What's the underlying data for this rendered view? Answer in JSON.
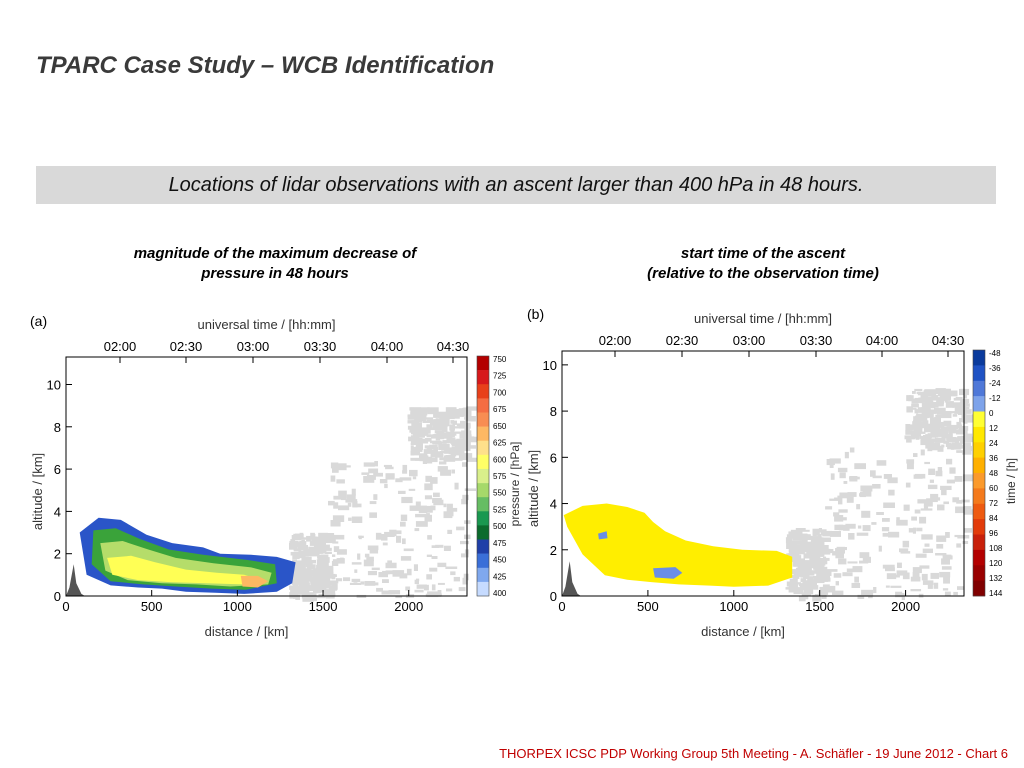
{
  "slide": {
    "title": "TPARC Case Study – WCB Identification",
    "banner": "Locations of lidar observations with an ascent larger than 400 hPa in 48 hours.",
    "footer": "THORPEX ICSC PDP Working Group 5th Meeting - A. Schäfler - 19 June 2012 - Chart 6"
  },
  "panels": [
    {
      "letter": "(a)",
      "heading_lines": [
        "magnitude of the maximum decrease of",
        "pressure in 48 hours"
      ]
    },
    {
      "letter": "(b)",
      "heading_lines": [
        "start time of the ascent",
        "(relative to the observation time)"
      ]
    }
  ],
  "chart_data": [
    {
      "type": "heatmap",
      "title": "",
      "xlabel": "distance / [km]",
      "x_ticks": [
        0,
        500,
        1000,
        1500,
        2000
      ],
      "xlim": [
        0,
        2340
      ],
      "top_xlabel": "universal time / [hh:mm]",
      "top_ticks": [
        "02:00",
        "02:30",
        "03:00",
        "03:30",
        "04:00",
        "04:30"
      ],
      "ylabel": "altitude / [km]",
      "y_ticks": [
        0,
        2,
        4,
        6,
        8,
        10
      ],
      "ylim": [
        0,
        11.3
      ],
      "colorbar": {
        "label": "pressure / [hPa]",
        "ticks": [
          "750",
          "725",
          "700",
          "675",
          "650",
          "625",
          "600",
          "575",
          "550",
          "525",
          "500",
          "475",
          "450",
          "425",
          "400"
        ],
        "colors": [
          "#b30000",
          "#d7191c",
          "#e8401a",
          "#f46d43",
          "#f88d52",
          "#fdb863",
          "#fee08b",
          "#ffff66",
          "#d9ef8b",
          "#a6d96a",
          "#66bd63",
          "#1a9850",
          "#0b6b2d",
          "#1f3fa8",
          "#3a6fd8",
          "#7fa8ee",
          "#c6dbff"
        ]
      },
      "fields": [
        {
          "name": "envelope",
          "color": "#2a55c8",
          "points": [
            [
              80,
              3.0
            ],
            [
              190,
              3.7
            ],
            [
              320,
              3.6
            ],
            [
              470,
              2.9
            ],
            [
              620,
              2.5
            ],
            [
              800,
              2.3
            ],
            [
              900,
              2.0
            ],
            [
              1080,
              1.95
            ],
            [
              1230,
              1.85
            ],
            [
              1340,
              1.6
            ],
            [
              1320,
              0.6
            ],
            [
              1230,
              0.2
            ],
            [
              1040,
              0.1
            ],
            [
              870,
              0.15
            ],
            [
              700,
              0.2
            ],
            [
              560,
              0.35
            ],
            [
              420,
              0.4
            ],
            [
              260,
              0.5
            ],
            [
              120,
              1.0
            ]
          ]
        },
        {
          "name": "green-core",
          "color": "#3aa33a",
          "points": [
            [
              160,
              3.1
            ],
            [
              290,
              3.2
            ],
            [
              430,
              2.7
            ],
            [
              600,
              2.2
            ],
            [
              800,
              1.95
            ],
            [
              1060,
              1.7
            ],
            [
              1220,
              1.5
            ],
            [
              1230,
              0.6
            ],
            [
              1050,
              0.3
            ],
            [
              850,
              0.35
            ],
            [
              640,
              0.45
            ],
            [
              450,
              0.55
            ],
            [
              260,
              0.7
            ],
            [
              150,
              1.5
            ]
          ]
        },
        {
          "name": "light-green",
          "color": "#b5dd6a",
          "points": [
            [
              200,
              2.5
            ],
            [
              330,
              2.6
            ],
            [
              480,
              2.2
            ],
            [
              640,
              1.8
            ],
            [
              860,
              1.55
            ],
            [
              1080,
              1.35
            ],
            [
              1200,
              1.1
            ],
            [
              1180,
              0.55
            ],
            [
              960,
              0.45
            ],
            [
              760,
              0.55
            ],
            [
              560,
              0.6
            ],
            [
              360,
              0.75
            ],
            [
              230,
              1.2
            ]
          ]
        },
        {
          "name": "yellow",
          "color": "#ffff55",
          "points": [
            [
              240,
              1.8
            ],
            [
              380,
              1.9
            ],
            [
              520,
              1.6
            ],
            [
              700,
              1.25
            ],
            [
              880,
              1.1
            ],
            [
              1040,
              1.0
            ],
            [
              1120,
              0.8
            ],
            [
              1030,
              0.55
            ],
            [
              820,
              0.6
            ],
            [
              620,
              0.65
            ],
            [
              420,
              0.75
            ],
            [
              270,
              1.0
            ]
          ]
        },
        {
          "name": "orange",
          "color": "#fdb863",
          "points": [
            [
              1020,
              0.95
            ],
            [
              1120,
              0.95
            ],
            [
              1180,
              0.7
            ],
            [
              1120,
              0.4
            ],
            [
              1030,
              0.45
            ]
          ]
        }
      ]
    },
    {
      "type": "heatmap",
      "title": "",
      "xlabel": "distance / [km]",
      "x_ticks": [
        0,
        500,
        1000,
        1500,
        2000
      ],
      "xlim": [
        0,
        2340
      ],
      "top_xlabel": "universal time / [hh:mm]",
      "top_ticks": [
        "02:00",
        "02:30",
        "03:00",
        "03:30",
        "04:00",
        "04:30"
      ],
      "ylabel": "altitude / [km]",
      "y_ticks": [
        0,
        2,
        4,
        6,
        8,
        10
      ],
      "ylim": [
        0,
        10.6
      ],
      "colorbar": {
        "label": "time / [h]",
        "ticks": [
          "-48",
          "-36",
          "-24",
          "-12",
          "0",
          "12",
          "24",
          "36",
          "48",
          "60",
          "72",
          "84",
          "96",
          "108",
          "120",
          "132",
          "144"
        ],
        "colors": [
          "#0a3a9c",
          "#1f52c4",
          "#4f78d8",
          "#7ea3ea",
          "#ffff33",
          "#ffe800",
          "#ffd000",
          "#ffb000",
          "#fb9a2c",
          "#f47a1c",
          "#ee5a10",
          "#e23b0a",
          "#c8200a",
          "#b30000",
          "#990000",
          "#800000"
        ]
      },
      "fields": [
        {
          "name": "yellow-field",
          "color": "#ffee00",
          "points": [
            [
              10,
              3.5
            ],
            [
              120,
              3.9
            ],
            [
              260,
              4.0
            ],
            [
              380,
              3.85
            ],
            [
              480,
              3.6
            ],
            [
              530,
              3.2
            ],
            [
              600,
              2.8
            ],
            [
              720,
              2.4
            ],
            [
              880,
              2.15
            ],
            [
              1050,
              2.0
            ],
            [
              1250,
              1.95
            ],
            [
              1340,
              1.7
            ],
            [
              1340,
              0.8
            ],
            [
              1200,
              0.45
            ],
            [
              1000,
              0.4
            ],
            [
              860,
              0.45
            ],
            [
              680,
              0.5
            ],
            [
              520,
              0.6
            ],
            [
              380,
              0.7
            ],
            [
              250,
              0.9
            ],
            [
              120,
              1.8
            ],
            [
              30,
              3.0
            ]
          ]
        },
        {
          "name": "blue-patch",
          "color": "#6a8ee6",
          "points": [
            [
              530,
              1.2
            ],
            [
              660,
              1.25
            ],
            [
              700,
              1.0
            ],
            [
              650,
              0.75
            ],
            [
              540,
              0.8
            ]
          ]
        },
        {
          "name": "small-blue",
          "color": "#6a8ee6",
          "points": [
            [
              210,
              2.7
            ],
            [
              260,
              2.8
            ],
            [
              265,
              2.5
            ],
            [
              215,
              2.45
            ]
          ]
        }
      ]
    }
  ]
}
